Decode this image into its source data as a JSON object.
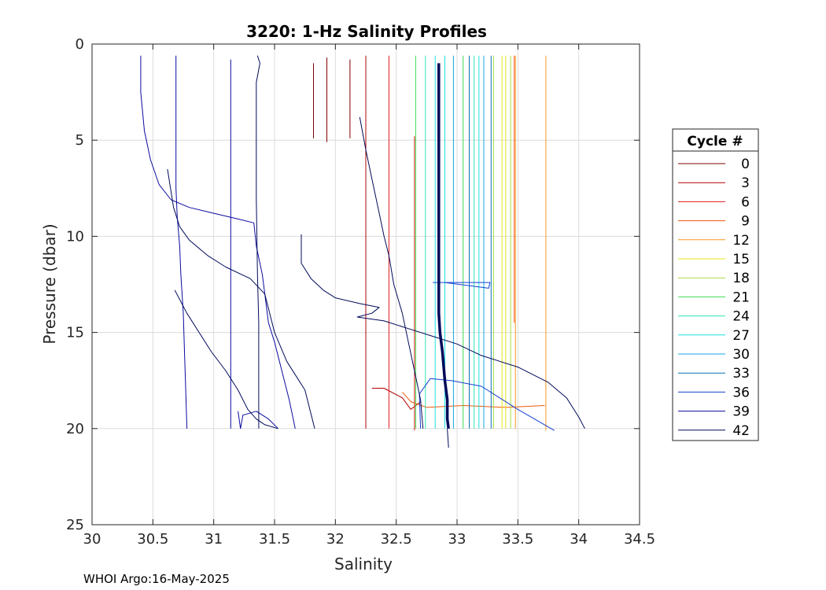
{
  "chart_data": {
    "type": "line",
    "title": "3220: 1-Hz Salinity Profiles",
    "xlabel": "Salinity",
    "ylabel": "Pressure (dbar)",
    "xlim": [
      30,
      34.5
    ],
    "ylim": [
      0,
      25
    ],
    "y_reversed": true,
    "xticks": [
      "30",
      "30.5",
      "31",
      "31.5",
      "32",
      "32.5",
      "33",
      "33.5",
      "34",
      "34.5"
    ],
    "yticks": [
      "0",
      "5",
      "10",
      "15",
      "20",
      "25"
    ],
    "grid": true,
    "legend": {
      "title": "Cycle #",
      "placement": "right-outside",
      "entries": [
        "0",
        "3",
        "6",
        "9",
        "12",
        "15",
        "18",
        "21",
        "24",
        "27",
        "30",
        "33",
        "36",
        "39",
        "42"
      ]
    },
    "series": [
      {
        "name": "0",
        "color": "#7f0000",
        "profiles": [
          [
            [
              31.82,
              1.0
            ],
            [
              31.82,
              4.9
            ]
          ],
          [
            [
              31.93,
              0.7
            ],
            [
              31.93,
              5.1
            ]
          ],
          [
            [
              32.12,
              0.8
            ],
            [
              32.12,
              4.9
            ]
          ]
        ]
      },
      {
        "name": "3",
        "color": "#b30000",
        "profiles": [
          [
            [
              32.25,
              0.6
            ],
            [
              32.25,
              18.0
            ],
            [
              32.25,
              20.0
            ]
          ],
          [
            [
              32.3,
              17.9
            ],
            [
              32.4,
              17.9
            ],
            [
              32.55,
              18.4
            ],
            [
              32.62,
              19.0
            ],
            [
              32.7,
              18.6
            ]
          ]
        ]
      },
      {
        "name": "6",
        "color": "#dd1c1c",
        "profiles": [
          [
            [
              32.44,
              0.6
            ],
            [
              32.44,
              20.0
            ]
          ],
          [
            [
              32.65,
              4.8
            ],
            [
              32.65,
              20.1
            ]
          ]
        ]
      },
      {
        "name": "9",
        "color": "#f05a0a",
        "profiles": [
          [
            [
              32.55,
              18.1
            ],
            [
              32.62,
              18.6
            ],
            [
              32.75,
              18.9
            ],
            [
              33.05,
              18.8
            ],
            [
              33.4,
              18.9
            ],
            [
              33.72,
              18.8
            ]
          ],
          [
            [
              33.47,
              0.6
            ],
            [
              33.47,
              14.5
            ]
          ]
        ]
      },
      {
        "name": "12",
        "color": "#f5961e",
        "profiles": [
          [
            [
              33.48,
              0.6
            ],
            [
              33.48,
              20.0
            ]
          ],
          [
            [
              33.73,
              0.6
            ],
            [
              33.73,
              20.1
            ]
          ]
        ]
      },
      {
        "name": "15",
        "color": "#e6e61a",
        "profiles": [
          [
            [
              33.37,
              0.6
            ],
            [
              33.37,
              20.0
            ]
          ],
          [
            [
              33.4,
              0.6
            ],
            [
              33.4,
              20.0
            ]
          ]
        ]
      },
      {
        "name": "18",
        "color": "#a5dc3c",
        "profiles": [
          [
            [
              33.3,
              0.6
            ],
            [
              33.3,
              20.0
            ]
          ],
          [
            [
              33.44,
              0.6
            ],
            [
              33.44,
              20.0
            ]
          ]
        ]
      },
      {
        "name": "21",
        "color": "#3cdc50",
        "profiles": [
          [
            [
              32.66,
              0.6
            ],
            [
              32.66,
              20.0
            ]
          ],
          [
            [
              33.05,
              0.6
            ],
            [
              33.05,
              20.0
            ]
          ]
        ]
      },
      {
        "name": "24",
        "color": "#2ee6b4",
        "profiles": [
          [
            [
              32.74,
              0.6
            ],
            [
              32.74,
              20.0
            ]
          ],
          [
            [
              33.14,
              0.6
            ],
            [
              33.14,
              20.0
            ]
          ]
        ]
      },
      {
        "name": "27",
        "color": "#1ee0e0",
        "profiles": [
          [
            [
              32.82,
              0.6
            ],
            [
              32.82,
              20.0
            ]
          ],
          [
            [
              32.9,
              0.6
            ],
            [
              32.9,
              20.0
            ]
          ],
          [
            [
              33.18,
              0.6
            ],
            [
              33.18,
              20.0
            ]
          ]
        ]
      },
      {
        "name": "30",
        "color": "#14a8e0",
        "profiles": [
          [
            [
              32.97,
              0.6
            ],
            [
              32.97,
              20.0
            ]
          ],
          [
            [
              33.22,
              0.6
            ],
            [
              33.22,
              20.0
            ]
          ]
        ]
      },
      {
        "name": "33",
        "color": "#0a6eb4",
        "profiles": [
          [
            [
              33.1,
              0.6
            ],
            [
              33.1,
              20.0
            ]
          ],
          [
            [
              33.28,
              0.6
            ],
            [
              33.28,
              20.0
            ]
          ]
        ]
      },
      {
        "name": "36",
        "color": "#1440d2",
        "profiles": [
          [
            [
              32.8,
              12.4
            ],
            [
              33.27,
              12.4
            ],
            [
              33.26,
              12.7
            ],
            [
              32.9,
              12.4
            ]
          ],
          [
            [
              32.7,
              20.0
            ],
            [
              32.69,
              18.2
            ],
            [
              32.78,
              17.4
            ],
            [
              32.95,
              17.5
            ],
            [
              33.2,
              17.8
            ],
            [
              33.5,
              19.0
            ],
            [
              33.8,
              20.1
            ]
          ]
        ]
      },
      {
        "name": "39",
        "color": "#0a0aa0",
        "profiles": [
          [
            [
              30.4,
              0.6
            ],
            [
              30.4,
              2.5
            ],
            [
              30.43,
              4.5
            ],
            [
              30.48,
              6.0
            ],
            [
              30.55,
              7.3
            ],
            [
              30.65,
              8.1
            ],
            [
              30.8,
              8.5
            ],
            [
              31.0,
              8.8
            ],
            [
              31.2,
              9.1
            ],
            [
              31.33,
              9.3
            ],
            [
              31.35,
              10.5
            ],
            [
              31.4,
              12.0
            ],
            [
              31.45,
              14.5
            ],
            [
              31.5,
              15.5
            ],
            [
              31.56,
              17.0
            ],
            [
              31.62,
              18.5
            ],
            [
              31.67,
              20.0
            ]
          ],
          [
            [
              30.69,
              0.6
            ],
            [
              30.69,
              7.5
            ],
            [
              30.7,
              9.0
            ],
            [
              30.72,
              10.5
            ],
            [
              30.73,
              12.0
            ],
            [
              30.75,
              14.0
            ],
            [
              30.76,
              16.0
            ],
            [
              30.77,
              18.0
            ],
            [
              30.78,
              20.0
            ]
          ],
          [
            [
              31.14,
              0.8
            ],
            [
              31.14,
              20.0
            ]
          ],
          [
            [
              31.2,
              19.1
            ],
            [
              31.22,
              20.0
            ],
            [
              31.24,
              19.3
            ],
            [
              31.35,
              19.1
            ],
            [
              31.45,
              19.5
            ],
            [
              31.53,
              20.0
            ]
          ]
        ]
      },
      {
        "name": "42",
        "color": "#000a5a",
        "profiles": [
          [
            [
              31.36,
              0.6
            ],
            [
              31.38,
              1.0
            ],
            [
              31.35,
              2.0
            ],
            [
              31.35,
              8.0
            ],
            [
              31.36,
              12.0
            ],
            [
              31.37,
              14.5
            ],
            [
              31.37,
              20.0
            ]
          ],
          [
            [
              30.62,
              6.5
            ],
            [
              30.67,
              8.5
            ],
            [
              30.72,
              9.5
            ],
            [
              30.8,
              10.2
            ],
            [
              30.95,
              11.0
            ],
            [
              31.1,
              11.6
            ],
            [
              31.3,
              12.2
            ],
            [
              31.42,
              13.0
            ],
            [
              31.5,
              15.0
            ],
            [
              31.6,
              16.5
            ],
            [
              31.75,
              18.0
            ],
            [
              31.83,
              20.0
            ]
          ],
          [
            [
              30.68,
              12.8
            ],
            [
              30.78,
              14.0
            ],
            [
              30.88,
              15.0
            ],
            [
              30.98,
              16.0
            ],
            [
              31.1,
              17.0
            ],
            [
              31.2,
              18.0
            ],
            [
              31.28,
              19.0
            ],
            [
              31.35,
              19.5
            ],
            [
              31.42,
              19.8
            ],
            [
              31.53,
              20.0
            ]
          ],
          [
            [
              31.72,
              9.9
            ],
            [
              31.72,
              11.4
            ],
            [
              31.8,
              12.2
            ],
            [
              31.9,
              12.8
            ],
            [
              32.0,
              13.2
            ],
            [
              32.2,
              13.5
            ],
            [
              32.36,
              13.7
            ],
            [
              32.3,
              14.0
            ],
            [
              32.18,
              14.2
            ],
            [
              32.4,
              14.4
            ],
            [
              32.6,
              14.8
            ],
            [
              32.8,
              15.2
            ],
            [
              33.0,
              15.6
            ],
            [
              33.2,
              16.2
            ],
            [
              33.5,
              16.8
            ],
            [
              33.75,
              17.6
            ],
            [
              33.9,
              18.4
            ],
            [
              34.0,
              19.4
            ],
            [
              34.05,
              20.0
            ]
          ],
          [
            [
              32.2,
              3.8
            ],
            [
              32.25,
              5.5
            ],
            [
              32.3,
              7.0
            ],
            [
              32.35,
              8.5
            ],
            [
              32.4,
              10.0
            ],
            [
              32.44,
              11.0
            ],
            [
              32.48,
              12.5
            ],
            [
              32.55,
              14.0
            ],
            [
              32.6,
              15.5
            ],
            [
              32.65,
              17.0
            ],
            [
              32.7,
              18.5
            ],
            [
              32.72,
              20.0
            ]
          ],
          [
            [
              32.85,
              1.0
            ],
            [
              32.85,
              14.0
            ],
            [
              32.86,
              15.0
            ],
            [
              32.88,
              16.0
            ],
            [
              32.9,
              17.5
            ],
            [
              32.92,
              18.5
            ],
            [
              32.92,
              19.5
            ],
            [
              32.93,
              20.0
            ]
          ],
          [
            [
              32.92,
              20.0
            ],
            [
              32.93,
              21.0
            ]
          ]
        ]
      }
    ]
  },
  "footer": {
    "text": "WHOI Argo:16-May-2025"
  }
}
